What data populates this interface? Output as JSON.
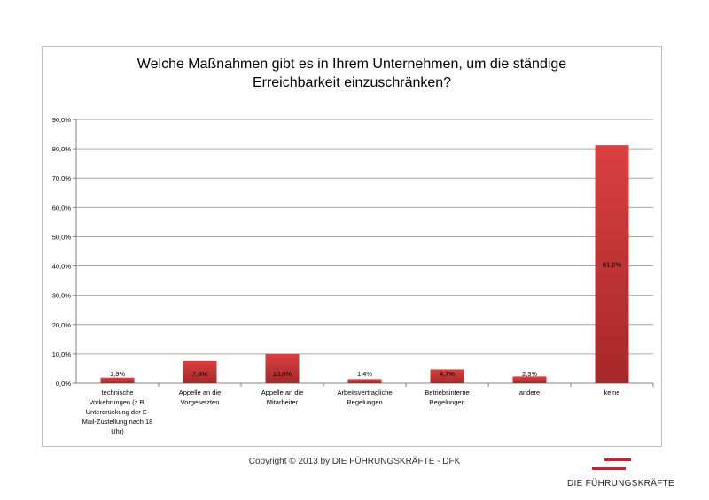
{
  "chart_data": {
    "type": "bar",
    "title": "Welche Maßnahmen gibt es in Ihrem Unternehmen, um die ständige Erreichbarkeit einzuschränken?",
    "title_lines": [
      "Welche Maßnahmen gibt es in Ihrem Unternehmen, um die ständige",
      "Erreichbarkeit einzuschränken?"
    ],
    "categories": [
      [
        "technische",
        "Vorkehrungen (z.B.",
        "Unterdrückung der E-",
        "Mail-Zustellung nach 18",
        "Uhr)"
      ],
      [
        "Appelle an die",
        "Vorgesetzten"
      ],
      [
        "Appelle an die",
        "Mitarbeiter"
      ],
      [
        "Arbeitsvertragliche",
        "Regelungen"
      ],
      [
        "Betriebsinterne",
        "Regelungen"
      ],
      [
        "andere"
      ],
      [
        "keine"
      ]
    ],
    "values": [
      1.9,
      7.6,
      10.0,
      1.4,
      4.7,
      2.3,
      81.2
    ],
    "data_labels": [
      "1,9%",
      "7,6%",
      "10,0%",
      "1,4%",
      "4,7%",
      "2,3%",
      "81,2%"
    ],
    "y_ticks": [
      "0,0%",
      "10,0%",
      "20,0%",
      "30,0%",
      "40,0%",
      "50,0%",
      "60,0%",
      "70,0%",
      "80,0%",
      "90,0%"
    ],
    "ylim": [
      0,
      90
    ],
    "grid": true,
    "bar_color_top": "#d94040",
    "bar_color_bottom": "#a62828"
  },
  "footer": {
    "copyright": "Copyright © 2013 by DIE FÜHRUNGSKRÄFTE - DFK",
    "logo_text": "DIE FÜHRUNGSKRÄFTE",
    "logo_color": "#c8242b"
  }
}
